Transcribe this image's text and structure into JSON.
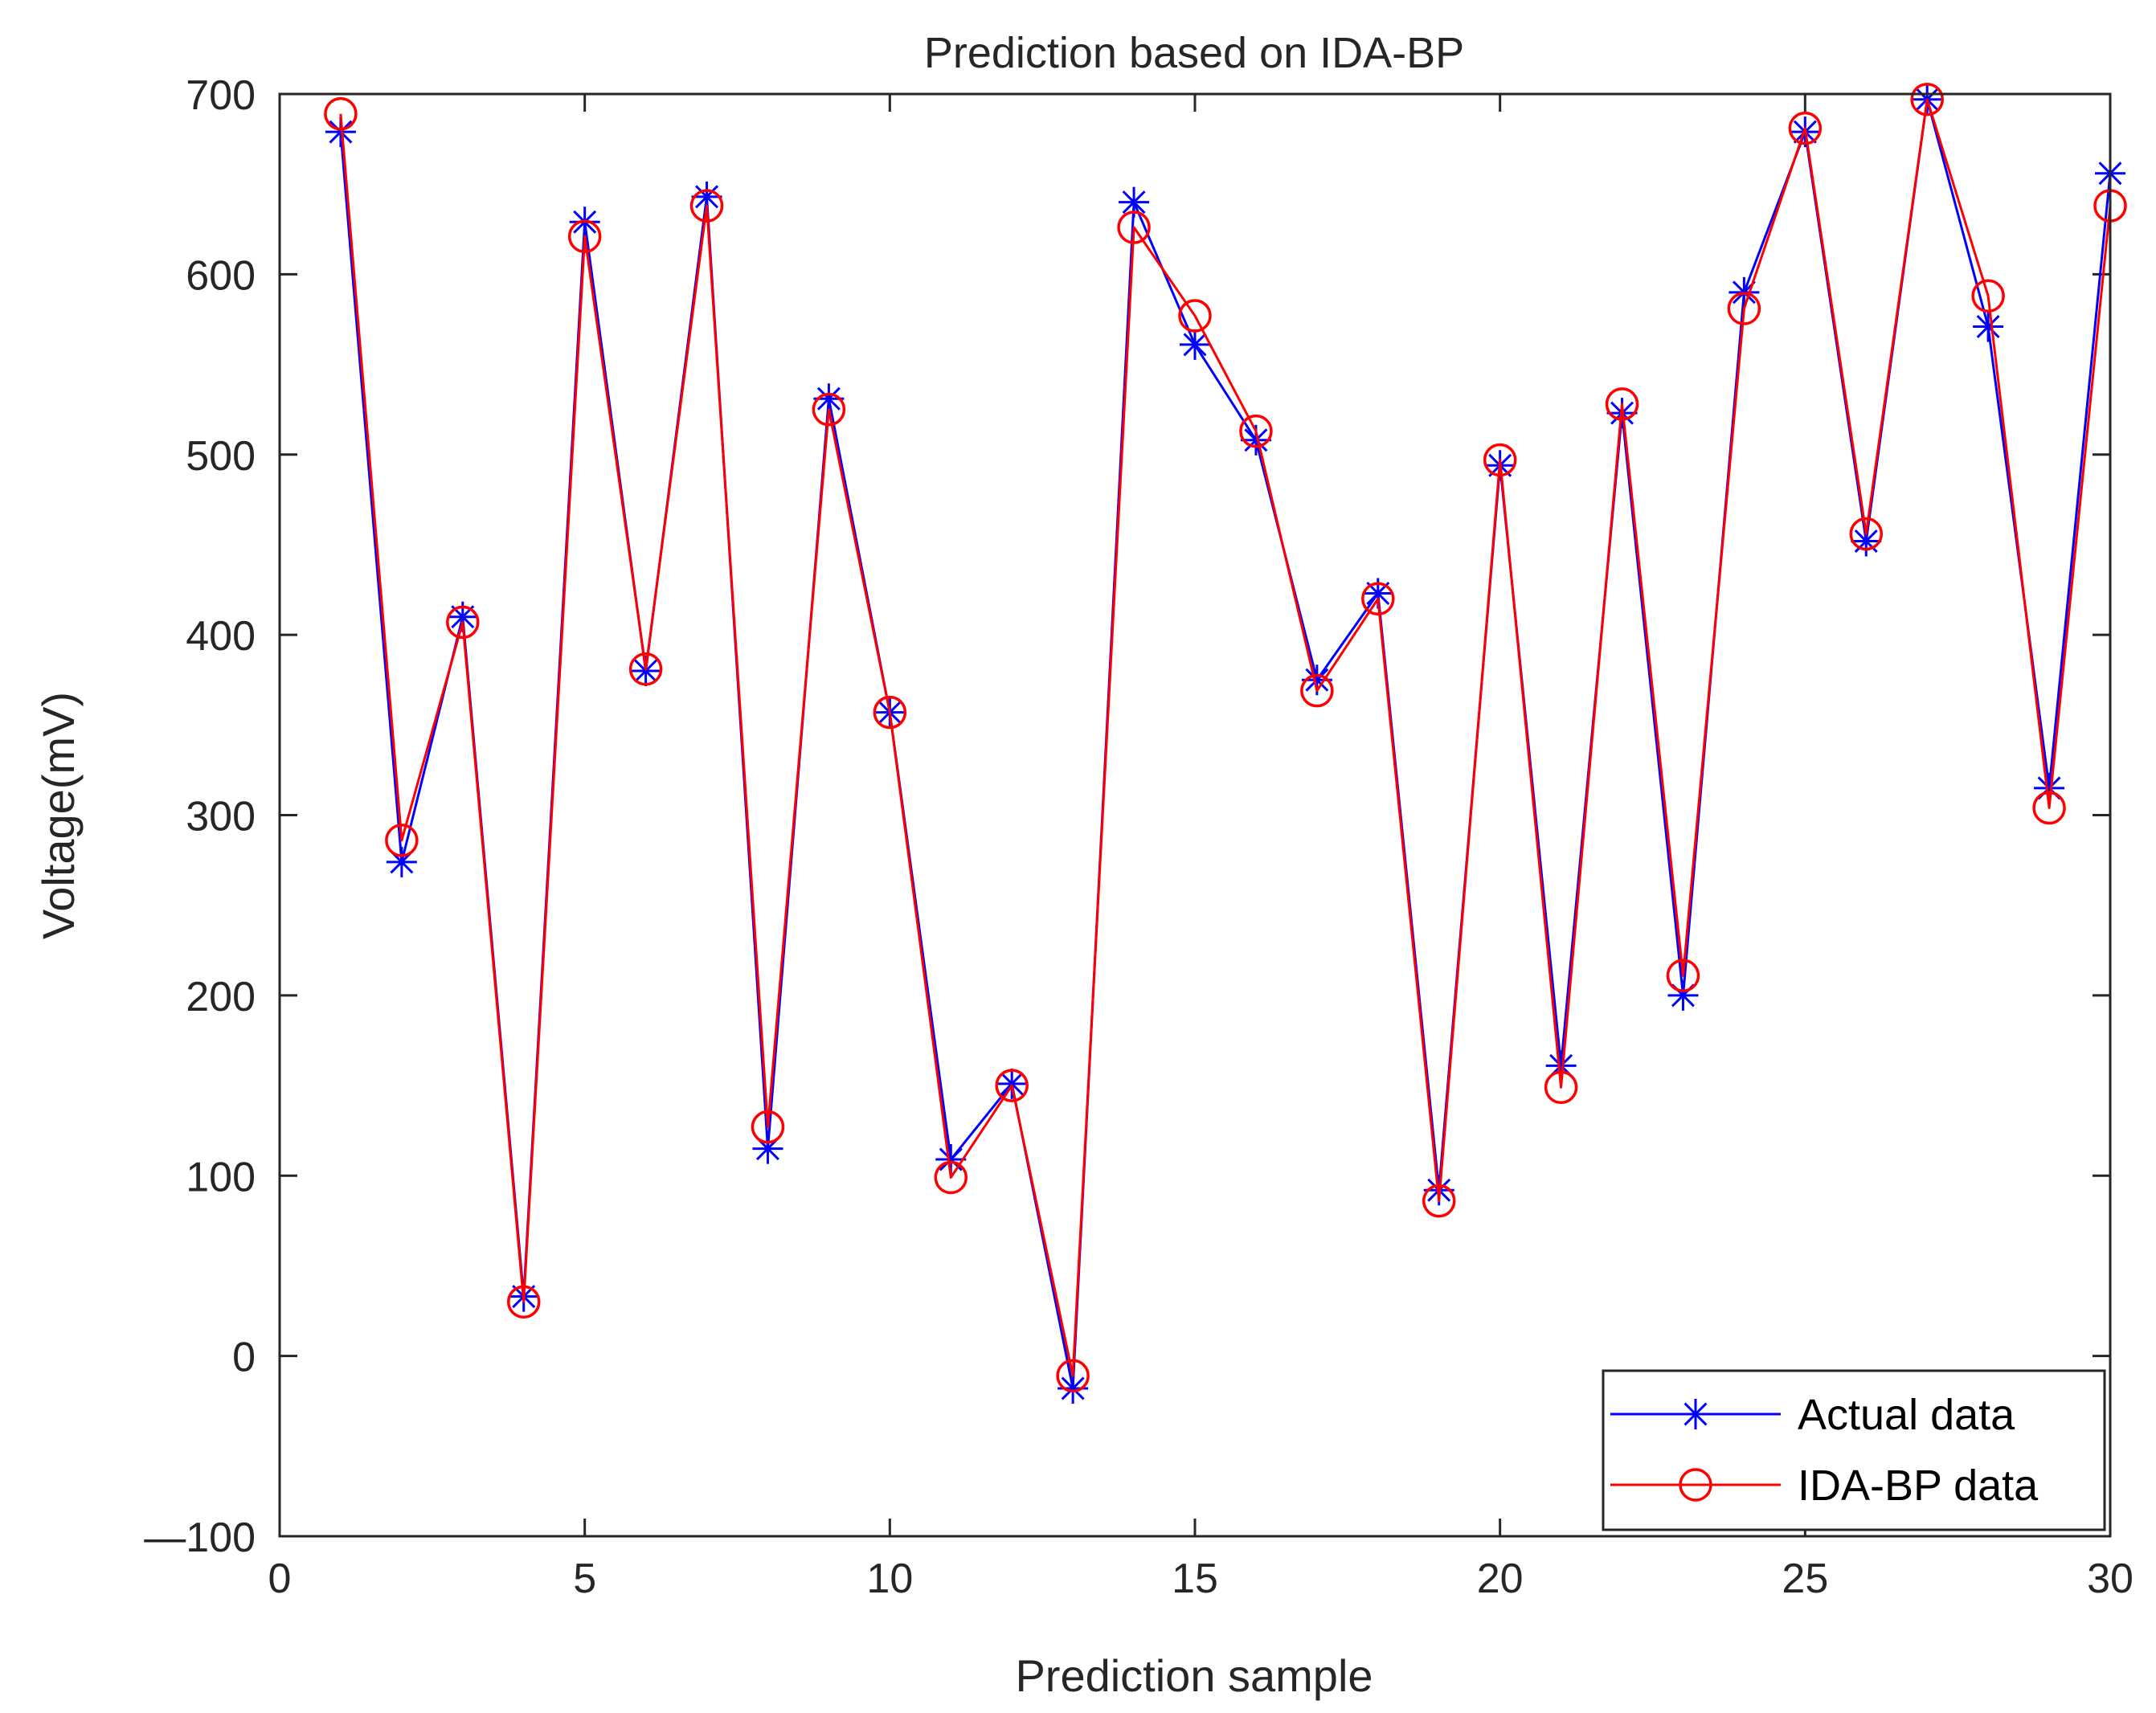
{
  "chart_data": {
    "type": "line",
    "title": "Prediction based on IDA-BP",
    "xlabel": "Prediction sample",
    "ylabel": "Voltage(mV)",
    "xlim": [
      0,
      30
    ],
    "ylim": [
      -100,
      700
    ],
    "xticks": [
      0,
      5,
      10,
      15,
      20,
      25,
      30
    ],
    "yticks": [
      -100,
      0,
      100,
      200,
      300,
      400,
      500,
      600,
      700
    ],
    "ytick_labels": [
      "—100",
      "0",
      "100",
      "200",
      "300",
      "400",
      "500",
      "600",
      "700"
    ],
    "grid": false,
    "legend_position": "bottom-right",
    "x": [
      1,
      2,
      3,
      4,
      5,
      6,
      7,
      8,
      9,
      10,
      11,
      12,
      13,
      14,
      15,
      16,
      17,
      18,
      19,
      20,
      21,
      22,
      23,
      24,
      25,
      26,
      27,
      28,
      29,
      30
    ],
    "series": [
      {
        "name": "Actual data",
        "color": "#0000ff",
        "marker": "asterisk",
        "values": [
          679,
          274,
          410,
          33,
          629,
          380,
          643,
          115,
          531,
          357,
          109,
          151,
          -18,
          640,
          561,
          508,
          375,
          423,
          92,
          494,
          161,
          523,
          200,
          590,
          679,
          452,
          697,
          571,
          315,
          656
        ]
      },
      {
        "name": "IDA-BP data",
        "color": "#ff0000",
        "marker": "circle",
        "values": [
          689,
          286,
          407,
          30,
          621,
          381,
          638,
          127,
          525,
          357,
          99,
          150,
          -11,
          626,
          577,
          513,
          369,
          420,
          86,
          497,
          149,
          528,
          211,
          581,
          681,
          456,
          697,
          588,
          304,
          638
        ]
      }
    ]
  }
}
